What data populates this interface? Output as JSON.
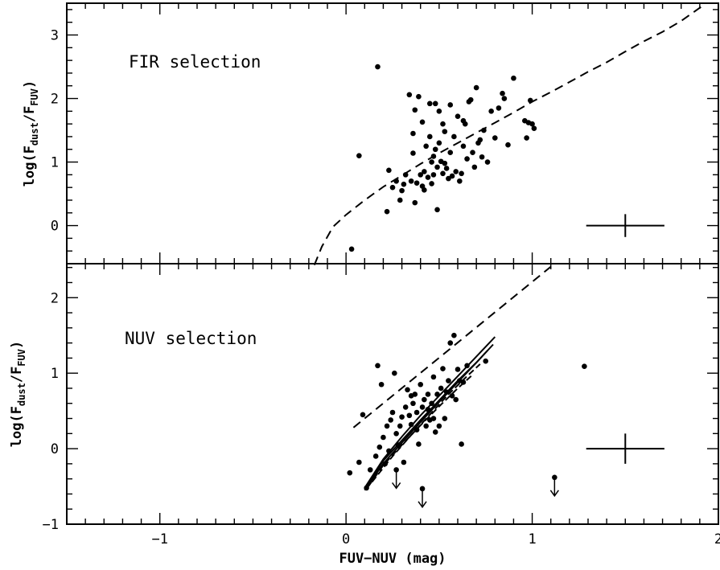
{
  "chart_data": [
    {
      "panel": "top",
      "type": "scatter",
      "annotation": "FIR selection",
      "ylabel_main": "log(F",
      "ylabel_sub1": "dust",
      "ylabel_mid": "/F",
      "ylabel_sub2": "FUV",
      "ylabel_end": ")",
      "xlim": [
        -1.5,
        2.0
      ],
      "ylim": [
        -0.6,
        3.5
      ],
      "yticks": [
        0,
        1,
        2,
        3
      ],
      "points": [
        [
          0.03,
          -0.37
        ],
        [
          0.07,
          1.1
        ],
        [
          0.17,
          2.5
        ],
        [
          0.22,
          0.22
        ],
        [
          0.23,
          0.87
        ],
        [
          0.25,
          0.6
        ],
        [
          0.29,
          0.4
        ],
        [
          0.3,
          0.55
        ],
        [
          0.31,
          0.65
        ],
        [
          0.32,
          0.8
        ],
        [
          0.34,
          2.06
        ],
        [
          0.35,
          0.7
        ],
        [
          0.36,
          1.14
        ],
        [
          0.37,
          1.82
        ],
        [
          0.37,
          0.36
        ],
        [
          0.38,
          0.67
        ],
        [
          0.39,
          2.03
        ],
        [
          0.4,
          0.8
        ],
        [
          0.41,
          0.62
        ],
        [
          0.42,
          0.85
        ],
        [
          0.42,
          0.56
        ],
        [
          0.43,
          1.25
        ],
        [
          0.44,
          0.76
        ],
        [
          0.45,
          1.92
        ],
        [
          0.45,
          1.4
        ],
        [
          0.46,
          0.66
        ],
        [
          0.46,
          1.0
        ],
        [
          0.47,
          1.09
        ],
        [
          0.47,
          0.8
        ],
        [
          0.48,
          1.92
        ],
        [
          0.48,
          1.2
        ],
        [
          0.49,
          0.92
        ],
        [
          0.49,
          0.25
        ],
        [
          0.5,
          1.8
        ],
        [
          0.5,
          1.3
        ],
        [
          0.51,
          1.01
        ],
        [
          0.52,
          0.82
        ],
        [
          0.52,
          1.6
        ],
        [
          0.53,
          0.98
        ],
        [
          0.53,
          1.48
        ],
        [
          0.54,
          0.9
        ],
        [
          0.55,
          0.74
        ],
        [
          0.56,
          1.15
        ],
        [
          0.57,
          0.78
        ],
        [
          0.58,
          1.4
        ],
        [
          0.59,
          0.85
        ],
        [
          0.6,
          1.72
        ],
        [
          0.61,
          0.7
        ],
        [
          0.62,
          0.82
        ],
        [
          0.63,
          1.25
        ],
        [
          0.64,
          1.6
        ],
        [
          0.65,
          1.05
        ],
        [
          0.66,
          1.95
        ],
        [
          0.67,
          1.98
        ],
        [
          0.68,
          1.15
        ],
        [
          0.69,
          0.92
        ],
        [
          0.7,
          2.17
        ],
        [
          0.71,
          1.3
        ],
        [
          0.72,
          1.35
        ],
        [
          0.73,
          1.08
        ],
        [
          0.74,
          1.5
        ],
        [
          0.76,
          1.0
        ],
        [
          0.78,
          1.8
        ],
        [
          0.8,
          1.38
        ],
        [
          0.82,
          1.85
        ],
        [
          0.84,
          2.08
        ],
        [
          0.85,
          2.0
        ],
        [
          0.87,
          1.27
        ],
        [
          0.9,
          2.32
        ],
        [
          0.96,
          1.65
        ],
        [
          0.97,
          1.38
        ],
        [
          0.98,
          1.62
        ],
        [
          0.99,
          1.97
        ],
        [
          1.0,
          1.6
        ],
        [
          1.01,
          1.53
        ],
        [
          0.36,
          1.45
        ],
        [
          0.41,
          1.63
        ],
        [
          0.56,
          1.9
        ],
        [
          0.63,
          1.65
        ],
        [
          0.27,
          0.7
        ]
      ],
      "curve": [
        [
          -0.17,
          -0.62
        ],
        [
          -0.13,
          -0.33
        ],
        [
          -0.07,
          -0.02
        ],
        [
          0.0,
          0.17
        ],
        [
          0.1,
          0.4
        ],
        [
          0.2,
          0.61
        ],
        [
          0.3,
          0.79
        ],
        [
          0.4,
          0.97
        ],
        [
          0.5,
          1.14
        ],
        [
          0.6,
          1.3
        ],
        [
          0.7,
          1.46
        ],
        [
          0.8,
          1.62
        ],
        [
          0.9,
          1.78
        ],
        [
          1.0,
          1.95
        ],
        [
          1.1,
          2.1
        ],
        [
          1.2,
          2.26
        ],
        [
          1.3,
          2.42
        ],
        [
          1.4,
          2.57
        ],
        [
          1.5,
          2.74
        ],
        [
          1.6,
          2.9
        ],
        [
          1.7,
          3.05
        ],
        [
          1.8,
          3.22
        ],
        [
          1.91,
          3.45
        ]
      ],
      "errorbar": {
        "x": 1.5,
        "y": 0.0,
        "xerr": 0.21,
        "yerr": 0.18
      }
    },
    {
      "panel": "bottom",
      "type": "scatter",
      "annotation": "NUV selection",
      "ylabel_main": "log(F",
      "ylabel_sub1": "dust",
      "ylabel_mid": "/F",
      "ylabel_sub2": "FUV",
      "ylabel_end": ")",
      "xlabel": "FUV−NUV (mag)",
      "xlim": [
        -1.5,
        2.0
      ],
      "ylim": [
        -1.0,
        2.45
      ],
      "xticks": [
        -1,
        0,
        1,
        2
      ],
      "yticks": [
        -1,
        0,
        1,
        2
      ],
      "points": [
        [
          0.02,
          -0.32
        ],
        [
          0.07,
          -0.18
        ],
        [
          0.09,
          0.45
        ],
        [
          0.11,
          -0.52
        ],
        [
          0.13,
          -0.28
        ],
        [
          0.16,
          -0.1
        ],
        [
          0.17,
          1.1
        ],
        [
          0.18,
          0.02
        ],
        [
          0.19,
          0.85
        ],
        [
          0.2,
          0.15
        ],
        [
          0.21,
          -0.2
        ],
        [
          0.22,
          0.3
        ],
        [
          0.23,
          -0.03
        ],
        [
          0.24,
          0.38
        ],
        [
          0.25,
          0.48
        ],
        [
          0.26,
          1.0
        ],
        [
          0.27,
          0.2
        ],
        [
          0.28,
          0.05
        ],
        [
          0.29,
          0.3
        ],
        [
          0.3,
          0.42
        ],
        [
          0.31,
          -0.18
        ],
        [
          0.32,
          0.55
        ],
        [
          0.33,
          0.78
        ],
        [
          0.34,
          0.44
        ],
        [
          0.35,
          0.32
        ],
        [
          0.36,
          0.6
        ],
        [
          0.37,
          0.72
        ],
        [
          0.38,
          0.48
        ],
        [
          0.39,
          0.06
        ],
        [
          0.4,
          0.85
        ],
        [
          0.41,
          0.55
        ],
        [
          0.42,
          0.65
        ],
        [
          0.43,
          0.3
        ],
        [
          0.44,
          0.72
        ],
        [
          0.45,
          0.38
        ],
        [
          0.46,
          0.6
        ],
        [
          0.47,
          0.95
        ],
        [
          0.48,
          0.22
        ],
        [
          0.49,
          0.72
        ],
        [
          0.5,
          0.3
        ],
        [
          0.51,
          0.8
        ],
        [
          0.52,
          1.06
        ],
        [
          0.53,
          0.4
        ],
        [
          0.54,
          0.75
        ],
        [
          0.55,
          0.9
        ],
        [
          0.56,
          1.4
        ],
        [
          0.57,
          0.7
        ],
        [
          0.58,
          1.5
        ],
        [
          0.59,
          0.65
        ],
        [
          0.6,
          1.05
        ],
        [
          0.61,
          0.9
        ],
        [
          0.62,
          0.06
        ],
        [
          0.63,
          0.88
        ],
        [
          0.65,
          1.1
        ],
        [
          0.75,
          1.16
        ],
        [
          1.28,
          1.09
        ],
        [
          0.35,
          0.7
        ],
        [
          0.38,
          0.25
        ],
        [
          0.44,
          0.52
        ],
        [
          0.47,
          0.4
        ]
      ],
      "upper_limits": [
        [
          0.27,
          -0.28
        ],
        [
          0.41,
          -0.53
        ],
        [
          1.12,
          -0.38
        ]
      ],
      "dashed_line": [
        [
          0.04,
          0.28
        ],
        [
          1.12,
          2.45
        ]
      ],
      "model_curves": [
        [
          [
            0.1,
            -0.55
          ],
          [
            0.2,
            -0.2
          ],
          [
            0.3,
            0.08
          ],
          [
            0.4,
            0.35
          ],
          [
            0.5,
            0.62
          ],
          [
            0.6,
            0.88
          ],
          [
            0.7,
            1.14
          ],
          [
            0.79,
            1.38
          ]
        ],
        [
          [
            0.1,
            -0.52
          ],
          [
            0.2,
            -0.14
          ],
          [
            0.3,
            0.16
          ],
          [
            0.4,
            0.44
          ],
          [
            0.5,
            0.7
          ],
          [
            0.6,
            0.96
          ],
          [
            0.7,
            1.22
          ],
          [
            0.8,
            1.48
          ]
        ],
        [
          [
            0.12,
            -0.5
          ],
          [
            0.2,
            -0.22
          ],
          [
            0.3,
            0.05
          ],
          [
            0.4,
            0.31
          ],
          [
            0.5,
            0.56
          ],
          [
            0.6,
            0.8
          ],
          [
            0.68,
            0.98
          ]
        ],
        [
          [
            0.12,
            -0.46
          ],
          [
            0.2,
            -0.16
          ],
          [
            0.3,
            0.11
          ],
          [
            0.4,
            0.38
          ],
          [
            0.5,
            0.64
          ],
          [
            0.6,
            0.9
          ],
          [
            0.7,
            1.14
          ],
          [
            0.76,
            1.3
          ]
        ],
        [
          [
            0.14,
            -0.44
          ],
          [
            0.25,
            -0.1
          ],
          [
            0.35,
            0.18
          ],
          [
            0.45,
            0.45
          ],
          [
            0.55,
            0.72
          ],
          [
            0.65,
            0.96
          ],
          [
            0.72,
            1.12
          ]
        ]
      ],
      "errorbar": {
        "x": 1.5,
        "y": 0.0,
        "xerr": 0.21,
        "yerr": 0.2
      }
    }
  ]
}
